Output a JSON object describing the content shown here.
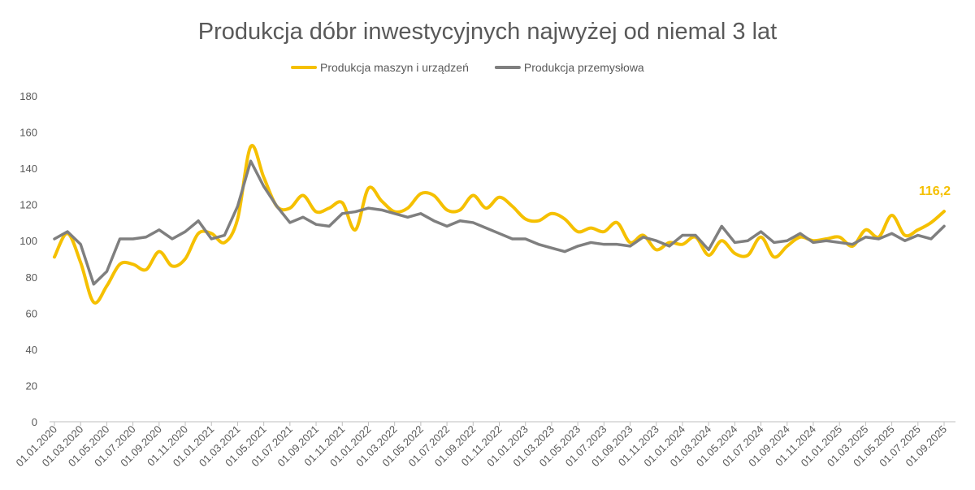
{
  "chart_data": {
    "type": "line",
    "title": "Produkcja dóbr inwestycyjnych najwyżej od niemal 3 lat",
    "categories": [
      "01.01.2020",
      null,
      "01.03.2020",
      null,
      "01.05.2020",
      null,
      "01.07.2020",
      null,
      "01.09.2020",
      null,
      "01.11.2020",
      null,
      "01.01.2021",
      null,
      "01.03.2021",
      null,
      "01.05.2021",
      null,
      "01.07.2021",
      null,
      "01.09.2021",
      null,
      "01.11.2021",
      null,
      "01.01.2022",
      null,
      "01.03.2022",
      null,
      "01.05.2022",
      null,
      "01.07.2022",
      null,
      "01.09.2022",
      null,
      "01.11.2022",
      null,
      "01.01.2023",
      null,
      "01.03.2023",
      null,
      "01.05.2023",
      null,
      "01.07.2023",
      null,
      "01.09.2023",
      null,
      "01.11.2023",
      null,
      "01.01.2024",
      null,
      "01.03.2024",
      null,
      "01.05.2024",
      null,
      "01.07.2024",
      null,
      "01.09.2024",
      null,
      "01.11.2024",
      null,
      "01.01.2025",
      null,
      "01.03.2025",
      null,
      "01.05.2025",
      null,
      "01.07.2025",
      null,
      "01.09.2025"
    ],
    "series": [
      {
        "name": "Produkcja maszyn i urządzeń",
        "color": "#f5c000",
        "smooth": true,
        "values": [
          91,
          104,
          88,
          66,
          75,
          87,
          87,
          84,
          94,
          86,
          90,
          104,
          104,
          99,
          112,
          152,
          135,
          119,
          118,
          125,
          116,
          118,
          121,
          106,
          129,
          122,
          116,
          118,
          126,
          125,
          117,
          117,
          125,
          118,
          124,
          119,
          112,
          111,
          115,
          112,
          105,
          107,
          105,
          110,
          99,
          103,
          95,
          99,
          98,
          102,
          92,
          100,
          93,
          92,
          102,
          91,
          97,
          102,
          100,
          101,
          102,
          97,
          106,
          102,
          114,
          103,
          106,
          110,
          116.2
        ],
        "value_labels": [
          null,
          null,
          null,
          null,
          null,
          null,
          null,
          null,
          null,
          null,
          null,
          null,
          null,
          null,
          null,
          null,
          null,
          null,
          null,
          null,
          null,
          null,
          null,
          null,
          null,
          null,
          null,
          null,
          null,
          null,
          null,
          null,
          null,
          null,
          null,
          null,
          null,
          null,
          null,
          null,
          null,
          null,
          null,
          null,
          null,
          null,
          null,
          null,
          null,
          null,
          null,
          null,
          null,
          null,
          null,
          null,
          null,
          null,
          null,
          null,
          null,
          null,
          null,
          null,
          null,
          null,
          null,
          null,
          "116,2"
        ]
      },
      {
        "name": "Produkcja przemysłowa",
        "color": "#7f7f7f",
        "smooth": false,
        "values": [
          101,
          105,
          98,
          76,
          83,
          101,
          101,
          102,
          106,
          101,
          105,
          111,
          101,
          103,
          119,
          144,
          130,
          119,
          110,
          113,
          109,
          108,
          115,
          116,
          118,
          117,
          115,
          113,
          115,
          111,
          108,
          111,
          110,
          107,
          104,
          101,
          101,
          98,
          96,
          94,
          97,
          99,
          98,
          98,
          97,
          102,
          100,
          97,
          103,
          103,
          95,
          108,
          99,
          100,
          105,
          99,
          100,
          104,
          99,
          100,
          99,
          98,
          102,
          101,
          104,
          100,
          103,
          101,
          108
        ]
      }
    ],
    "ylim": [
      0,
      180
    ],
    "yticks": [
      0,
      20,
      40,
      60,
      80,
      100,
      120,
      140,
      160,
      180
    ],
    "grid": false,
    "legend": "top"
  }
}
